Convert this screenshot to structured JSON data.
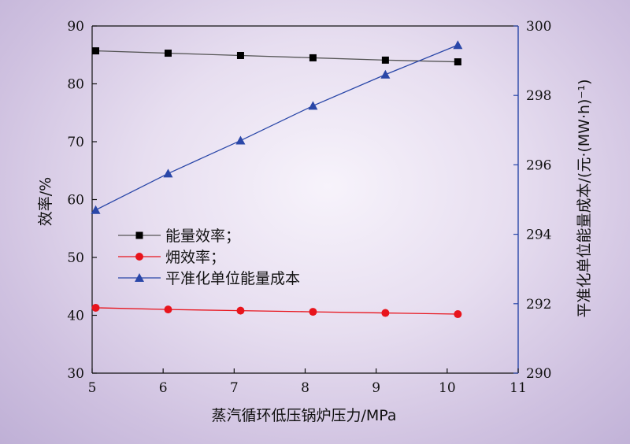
{
  "chart_data": {
    "type": "line",
    "xlabel": "蒸汽循环低压锅炉压力/MPa",
    "ylabel_left": "效率/%",
    "ylabel_right": "平准化单位能量成本/(元·(MW·h)⁻¹)",
    "xlim": [
      5,
      11
    ],
    "ylim_left": [
      30,
      90
    ],
    "ylim_right": [
      290,
      300
    ],
    "x_ticks": [
      "5",
      "6",
      "7",
      "8",
      "9",
      "10",
      "11"
    ],
    "y_left_ticks": [
      "30",
      "40",
      "50",
      "60",
      "70",
      "80",
      "90"
    ],
    "y_right_ticks": [
      "290",
      "292",
      "294",
      "296",
      "298",
      "300"
    ],
    "grid": false,
    "legend_position": "center-left",
    "series": [
      {
        "name": "能量效率；",
        "axis": "left",
        "marker": "square",
        "color": "#000000",
        "line_color": "#555555",
        "x": [
          5.05,
          6.07,
          7.09,
          8.11,
          9.13,
          10.15
        ],
        "y": [
          85.7,
          85.3,
          84.9,
          84.5,
          84.1,
          83.8
        ]
      },
      {
        "name": "㶲效率；",
        "axis": "left",
        "marker": "circle",
        "color": "#e8141c",
        "line_color": "#e8141c",
        "x": [
          5.05,
          6.07,
          7.09,
          8.11,
          9.13,
          10.15
        ],
        "y": [
          41.3,
          41.0,
          40.8,
          40.6,
          40.4,
          40.2
        ]
      },
      {
        "name": "平准化单位能量成本",
        "axis": "right",
        "marker": "triangle",
        "color": "#2a47a8",
        "line_color": "#2a47a8",
        "x": [
          5.05,
          6.07,
          7.09,
          8.11,
          9.13,
          10.15
        ],
        "y": [
          294.7,
          295.75,
          296.7,
          297.7,
          298.6,
          299.45
        ]
      }
    ]
  }
}
